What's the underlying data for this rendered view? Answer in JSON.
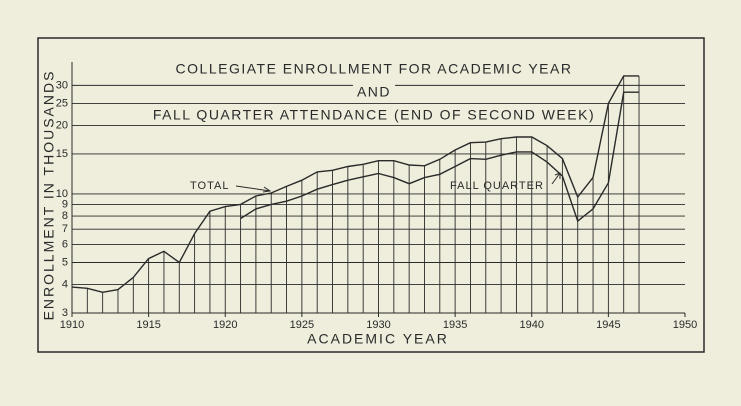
{
  "chart_data": {
    "type": "line",
    "title": [
      "COLLEGIATE ENROLLMENT FOR ACADEMIC YEAR",
      "AND",
      "FALL QUARTER ATTENDANCE (END OF SECOND WEEK)"
    ],
    "xlabel": "ACADEMIC YEAR",
    "ylabel": "ENROLLMENT IN THOUSANDS",
    "x": [
      1910,
      1911,
      1912,
      1913,
      1914,
      1915,
      1916,
      1917,
      1918,
      1919,
      1920,
      1921,
      1922,
      1923,
      1924,
      1925,
      1926,
      1927,
      1928,
      1929,
      1930,
      1931,
      1932,
      1933,
      1934,
      1935,
      1936,
      1937,
      1938,
      1939,
      1940,
      1941,
      1942,
      1943,
      1944,
      1945,
      1946,
      1947
    ],
    "series": [
      {
        "name": "TOTAL",
        "color": "#2a2a2a",
        "values": [
          3.9,
          3.85,
          3.7,
          3.8,
          4.3,
          5.2,
          5.6,
          5.0,
          6.7,
          8.4,
          8.8,
          9.0,
          9.8,
          10.1,
          10.8,
          11.5,
          12.5,
          12.7,
          13.2,
          13.5,
          14.0,
          14.0,
          13.4,
          13.3,
          14.2,
          15.6,
          16.8,
          16.9,
          17.5,
          17.8,
          17.8,
          16.3,
          14.3,
          9.7,
          11.8,
          25,
          33,
          33
        ]
      },
      {
        "name": "FALL QUARTER",
        "color": "#2a2a2a",
        "values": [
          null,
          null,
          null,
          null,
          null,
          null,
          null,
          null,
          null,
          null,
          null,
          7.8,
          8.6,
          9.0,
          9.3,
          9.8,
          10.5,
          11.0,
          11.5,
          11.9,
          12.3,
          11.8,
          11.1,
          11.8,
          12.2,
          13.2,
          14.3,
          14.2,
          14.8,
          15.3,
          15.3,
          13.8,
          12.0,
          7.6,
          8.6,
          11.2,
          28,
          28
        ]
      }
    ],
    "xlim": [
      1910,
      1950
    ],
    "xticks": [
      1910,
      1915,
      1920,
      1925,
      1930,
      1935,
      1940,
      1945,
      1950
    ],
    "ylim": [
      3,
      38
    ],
    "yticks": [
      3,
      4,
      5,
      6,
      7,
      8,
      9,
      10,
      15,
      20,
      25,
      30
    ],
    "log_y": true,
    "grid": true
  }
}
